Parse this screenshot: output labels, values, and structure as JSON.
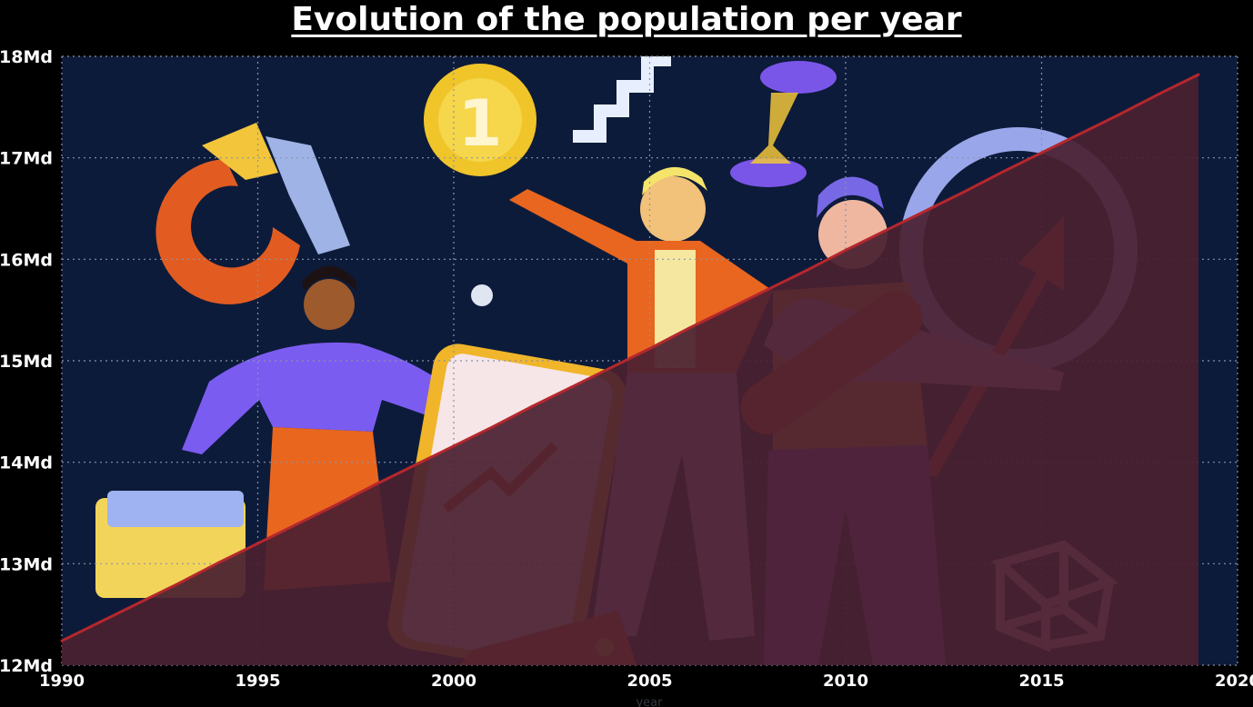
{
  "chart_data": {
    "type": "area",
    "title": "Evolution of the population per year",
    "xlabel": "year",
    "ylabel": "",
    "x_ticks": [
      "1990",
      "1995",
      "2000",
      "2005",
      "2010",
      "2015",
      "2020"
    ],
    "y_ticks": [
      "12Md",
      "13Md",
      "14Md",
      "15Md",
      "16Md",
      "17Md",
      "18Md"
    ],
    "xlim": [
      1990,
      2020
    ],
    "ylim": [
      12,
      18
    ],
    "y_unit": "Md",
    "grid": true,
    "background": "illustration of business people with coins, charts and a growth arrow",
    "series": [
      {
        "x": [
          1990,
          1991,
          1992,
          1993,
          1994,
          1995,
          1996,
          1997,
          1998,
          1999,
          2000,
          2001,
          2002,
          2003,
          2004,
          2005,
          2006,
          2007,
          2008,
          2009,
          2010,
          2011,
          2012,
          2013,
          2014,
          2015,
          2016,
          2017,
          2018,
          2019
        ],
        "values": [
          12.24,
          12.43,
          12.62,
          12.81,
          13.01,
          13.2,
          13.39,
          13.58,
          13.78,
          13.97,
          14.16,
          14.35,
          14.55,
          14.74,
          14.93,
          15.12,
          15.32,
          15.51,
          15.7,
          15.89,
          16.09,
          16.28,
          16.47,
          16.66,
          16.86,
          17.05,
          17.24,
          17.43,
          17.63,
          17.82
        ]
      }
    ],
    "colors": {
      "plot_background": "#0d1b3a",
      "area_fill": "#4a2030",
      "line": "#b5272d",
      "grid": "#8a93a8"
    }
  }
}
